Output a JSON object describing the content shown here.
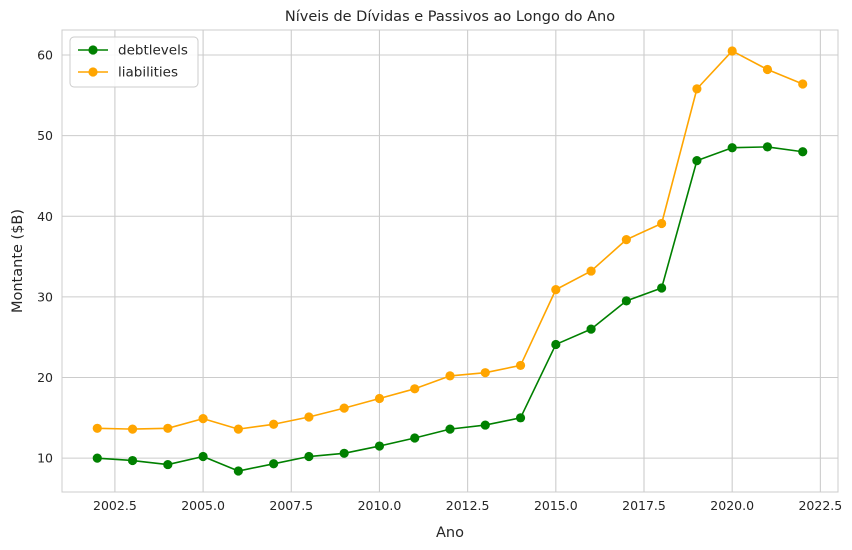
{
  "chart_data": {
    "type": "line",
    "title": "Níveis de Dívidas e Passivos ao Longo do Ano",
    "xlabel": "Ano",
    "ylabel": "Montante ($B)",
    "x": [
      2002,
      2003,
      2004,
      2005,
      2006,
      2007,
      2008,
      2009,
      2010,
      2011,
      2012,
      2013,
      2014,
      2015,
      2016,
      2017,
      2018,
      2019,
      2020,
      2021,
      2022
    ],
    "series": [
      {
        "name": "debtlevels",
        "color": "#008000",
        "values": [
          10.0,
          9.7,
          9.2,
          10.2,
          8.4,
          9.3,
          10.2,
          10.6,
          11.5,
          12.5,
          13.6,
          14.1,
          15.0,
          24.1,
          26.0,
          29.5,
          31.1,
          46.9,
          48.5,
          48.6,
          48.0
        ]
      },
      {
        "name": "liabilities",
        "color": "#FFA500",
        "values": [
          13.7,
          13.6,
          13.7,
          14.9,
          13.6,
          14.2,
          15.1,
          16.2,
          17.4,
          18.6,
          20.2,
          20.6,
          21.5,
          30.9,
          33.2,
          37.1,
          39.1,
          55.8,
          60.5,
          58.2,
          56.4
        ]
      }
    ],
    "xlim": [
      2001,
      2023
    ],
    "ylim": [
      5.8,
      63.1
    ],
    "xticks": [
      2002.5,
      2005,
      2007.5,
      2010,
      2012.5,
      2015,
      2017.5,
      2020,
      2022.5
    ],
    "xtick_labels": [
      "2002.5",
      "2005.0",
      "2007.5",
      "2010.0",
      "2012.5",
      "2015.0",
      "2017.5",
      "2020.0",
      "2022.5"
    ],
    "yticks": [
      10,
      20,
      30,
      40,
      50,
      60
    ],
    "ytick_labels": [
      "10",
      "20",
      "30",
      "40",
      "50",
      "60"
    ],
    "grid": true,
    "legend_position": "top-left"
  }
}
